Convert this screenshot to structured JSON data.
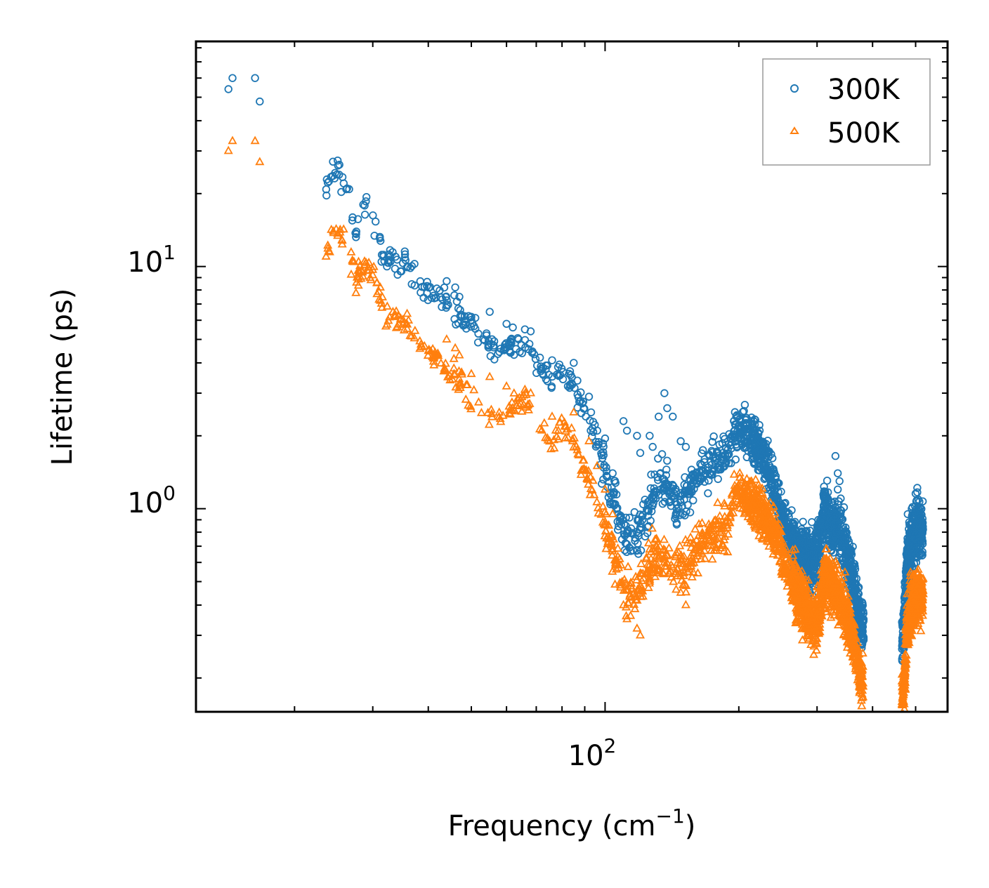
{
  "chart_data": {
    "type": "scatter",
    "title": "",
    "xlabel": "Frequency (cm",
    "xlabel_sup": "−1",
    "xlabel_end": ")",
    "ylabel": "Lifetime (ps)",
    "xscale": "log",
    "yscale": "log",
    "xlim": [
      12,
      590
    ],
    "ylim": [
      0.145,
      85
    ],
    "x_major_ticks": [
      {
        "value": 100,
        "base": "10",
        "exp": "2"
      }
    ],
    "y_major_ticks": [
      {
        "value": 1,
        "base": "10",
        "exp": "0"
      },
      {
        "value": 10,
        "base": "10",
        "exp": "1"
      }
    ],
    "grid": false,
    "legend_position": "top-right",
    "series": [
      {
        "name": "300K",
        "color": "#1f77b4",
        "marker": "circle",
        "anchors": [
          [
            14.2,
            54
          ],
          [
            14.5,
            60
          ],
          [
            16.3,
            60
          ],
          [
            16.7,
            48
          ],
          [
            24,
            21
          ],
          [
            24.6,
            26.5
          ],
          [
            26.5,
            20.5
          ],
          [
            27.5,
            14
          ],
          [
            28,
            16
          ],
          [
            29,
            17
          ],
          [
            31,
            13
          ],
          [
            32,
            10
          ],
          [
            33,
            11
          ],
          [
            35,
            10.5
          ],
          [
            36,
            9.5
          ],
          [
            38,
            8.5
          ],
          [
            40,
            8
          ],
          [
            42,
            7.5
          ],
          [
            44,
            7
          ],
          [
            46,
            6.5
          ],
          [
            48,
            6
          ],
          [
            50,
            5.7
          ],
          [
            52,
            5.3
          ],
          [
            54,
            5.0
          ],
          [
            56,
            4.8
          ],
          [
            58,
            4.6
          ],
          [
            60,
            4.5
          ],
          [
            62,
            4.6
          ],
          [
            64,
            4.8
          ],
          [
            66,
            5.0
          ],
          [
            68,
            4.8
          ],
          [
            70,
            4.2
          ],
          [
            72,
            3.9
          ],
          [
            74,
            3.6
          ],
          [
            76,
            3.5
          ],
          [
            78,
            3.7
          ],
          [
            80,
            3.8
          ],
          [
            82,
            3.6
          ],
          [
            84,
            3.4
          ],
          [
            86,
            3.1
          ],
          [
            88,
            2.9
          ],
          [
            90,
            2.6
          ],
          [
            92,
            2.3
          ],
          [
            94,
            2.0
          ],
          [
            96,
            1.8
          ],
          [
            98,
            1.6
          ],
          [
            100,
            1.5
          ],
          [
            103,
            1.2
          ],
          [
            106,
            1.0
          ],
          [
            109,
            0.85
          ],
          [
            112,
            0.75
          ],
          [
            115,
            0.72
          ],
          [
            118,
            0.78
          ],
          [
            121,
            0.85
          ],
          [
            124,
            0.95
          ],
          [
            127,
            1.05
          ],
          [
            130,
            1.2
          ],
          [
            134,
            1.3
          ],
          [
            138,
            1.25
          ],
          [
            142,
            1.1
          ],
          [
            146,
            1.0
          ],
          [
            150,
            1.05
          ],
          [
            155,
            1.2
          ],
          [
            160,
            1.3
          ],
          [
            165,
            1.4
          ],
          [
            170,
            1.5
          ],
          [
            175,
            1.55
          ],
          [
            180,
            1.6
          ],
          [
            185,
            1.7
          ],
          [
            190,
            1.8
          ],
          [
            195,
            2.05
          ],
          [
            200,
            2.15
          ],
          [
            205,
            2.1
          ],
          [
            210,
            2.0
          ],
          [
            215,
            1.9
          ],
          [
            220,
            1.8
          ],
          [
            225,
            1.7
          ],
          [
            230,
            1.55
          ],
          [
            235,
            1.4
          ],
          [
            240,
            1.25
          ],
          [
            245,
            1.1
          ],
          [
            250,
            0.95
          ],
          [
            258,
            0.8
          ],
          [
            266,
            0.7
          ],
          [
            275,
            0.65
          ],
          [
            285,
            0.62
          ],
          [
            295,
            0.6
          ],
          [
            305,
            0.8
          ],
          [
            310,
            0.95
          ],
          [
            318,
            0.9
          ],
          [
            326,
            0.85
          ],
          [
            334,
            0.8
          ],
          [
            342,
            0.75
          ],
          [
            350,
            0.65
          ],
          [
            358,
            0.55
          ],
          [
            366,
            0.45
          ],
          [
            372,
            0.38
          ],
          [
            378,
            0.33
          ],
          [
            470,
            0.3
          ],
          [
            478,
            0.6
          ],
          [
            490,
            0.75
          ],
          [
            505,
            0.85
          ],
          [
            515,
            0.8
          ]
        ],
        "outliers": [
          [
            44,
            8.7
          ],
          [
            46,
            8.2
          ],
          [
            47,
            7.5
          ],
          [
            50,
            6.2
          ],
          [
            55,
            6.5
          ],
          [
            60,
            5.8
          ],
          [
            62,
            5.6
          ],
          [
            66,
            5.5
          ],
          [
            68,
            5.4
          ],
          [
            76,
            4.1
          ],
          [
            85,
            4.0
          ],
          [
            92,
            2.9
          ],
          [
            93,
            2.5
          ],
          [
            96,
            2.1
          ],
          [
            100,
            1.95
          ],
          [
            104,
            1.4
          ],
          [
            110,
            2.3
          ],
          [
            112,
            2.1
          ],
          [
            118,
            2.0
          ],
          [
            120,
            1.7
          ],
          [
            126,
            2.0
          ],
          [
            128,
            1.8
          ],
          [
            132,
            2.4
          ],
          [
            136,
            3.0
          ],
          [
            138,
            2.6
          ],
          [
            142,
            2.4
          ],
          [
            148,
            1.9
          ],
          [
            152,
            1.8
          ],
          [
            330,
            1.65
          ],
          [
            334,
            1.4
          ],
          [
            337,
            1.3
          ],
          [
            334,
            1.2
          ],
          [
            490,
            1.0
          ],
          [
            480,
            0.95
          ]
        ]
      },
      {
        "name": "500K",
        "color": "#ff7f0e",
        "marker": "triangle",
        "anchors": [
          [
            14.2,
            30
          ],
          [
            14.5,
            33
          ],
          [
            16.3,
            33
          ],
          [
            16.7,
            27
          ],
          [
            24,
            12
          ],
          [
            24.6,
            15
          ],
          [
            26.5,
            12
          ],
          [
            27.5,
            8.5
          ],
          [
            28,
            9.5
          ],
          [
            29,
            10
          ],
          [
            31,
            7.8
          ],
          [
            32,
            6
          ],
          [
            33,
            6.2
          ],
          [
            35,
            6
          ],
          [
            36,
            5.5
          ],
          [
            38,
            4.8
          ],
          [
            40,
            4.5
          ],
          [
            42,
            4.3
          ],
          [
            44,
            3.8
          ],
          [
            46,
            3.5
          ],
          [
            48,
            3.2
          ],
          [
            50,
            2.9
          ],
          [
            52,
            2.6
          ],
          [
            54,
            2.5
          ],
          [
            56,
            2.4
          ],
          [
            58,
            2.35
          ],
          [
            60,
            2.4
          ],
          [
            62,
            2.6
          ],
          [
            64,
            2.7
          ],
          [
            66,
            2.8
          ],
          [
            68,
            2.6
          ],
          [
            70,
            2.3
          ],
          [
            72,
            2.0
          ],
          [
            74,
            1.9
          ],
          [
            76,
            1.85
          ],
          [
            78,
            2.0
          ],
          [
            80,
            2.2
          ],
          [
            82,
            2.1
          ],
          [
            84,
            2.0
          ],
          [
            86,
            1.8
          ],
          [
            88,
            1.6
          ],
          [
            90,
            1.5
          ],
          [
            92,
            1.3
          ],
          [
            94,
            1.15
          ],
          [
            96,
            1.05
          ],
          [
            98,
            0.95
          ],
          [
            100,
            0.85
          ],
          [
            103,
            0.7
          ],
          [
            106,
            0.58
          ],
          [
            109,
            0.5
          ],
          [
            112,
            0.45
          ],
          [
            115,
            0.42
          ],
          [
            118,
            0.45
          ],
          [
            121,
            0.5
          ],
          [
            124,
            0.55
          ],
          [
            127,
            0.6
          ],
          [
            130,
            0.63
          ],
          [
            134,
            0.65
          ],
          [
            138,
            0.62
          ],
          [
            142,
            0.58
          ],
          [
            146,
            0.55
          ],
          [
            150,
            0.58
          ],
          [
            155,
            0.62
          ],
          [
            160,
            0.68
          ],
          [
            165,
            0.72
          ],
          [
            170,
            0.75
          ],
          [
            175,
            0.78
          ],
          [
            180,
            0.8
          ],
          [
            185,
            0.82
          ],
          [
            190,
            0.85
          ],
          [
            195,
            1.15
          ],
          [
            200,
            1.2
          ],
          [
            205,
            1.15
          ],
          [
            210,
            1.1
          ],
          [
            215,
            1.05
          ],
          [
            220,
            1.0
          ],
          [
            225,
            0.95
          ],
          [
            230,
            0.9
          ],
          [
            235,
            0.85
          ],
          [
            240,
            0.8
          ],
          [
            245,
            0.75
          ],
          [
            250,
            0.65
          ],
          [
            258,
            0.55
          ],
          [
            266,
            0.48
          ],
          [
            275,
            0.42
          ],
          [
            285,
            0.38
          ],
          [
            295,
            0.33
          ],
          [
            305,
            0.4
          ],
          [
            310,
            0.52
          ],
          [
            318,
            0.5
          ],
          [
            326,
            0.48
          ],
          [
            334,
            0.44
          ],
          [
            342,
            0.4
          ],
          [
            350,
            0.35
          ],
          [
            358,
            0.3
          ],
          [
            366,
            0.26
          ],
          [
            372,
            0.22
          ],
          [
            378,
            0.19
          ],
          [
            470,
            0.17
          ],
          [
            478,
            0.32
          ],
          [
            490,
            0.4
          ],
          [
            505,
            0.45
          ],
          [
            515,
            0.42
          ]
        ],
        "outliers": [
          [
            44,
            5.0
          ],
          [
            46,
            4.6
          ],
          [
            47,
            4.3
          ],
          [
            50,
            3.6
          ],
          [
            55,
            3.5
          ],
          [
            60,
            3.2
          ],
          [
            66,
            3.1
          ],
          [
            68,
            3.0
          ],
          [
            76,
            2.4
          ],
          [
            85,
            2.5
          ],
          [
            92,
            1.9
          ],
          [
            96,
            1.5
          ],
          [
            100,
            1.2
          ],
          [
            104,
            0.95
          ],
          [
            110,
            0.4
          ],
          [
            112,
            0.35
          ],
          [
            118,
            0.32
          ],
          [
            120,
            0.3
          ],
          [
            126,
            0.5
          ],
          [
            132,
            0.55
          ],
          [
            136,
            0.6
          ],
          [
            148,
            0.45
          ],
          [
            152,
            0.4
          ],
          [
            330,
            0.5
          ],
          [
            334,
            0.45
          ],
          [
            470,
            0.16
          ],
          [
            468,
            0.19
          ]
        ]
      }
    ]
  }
}
